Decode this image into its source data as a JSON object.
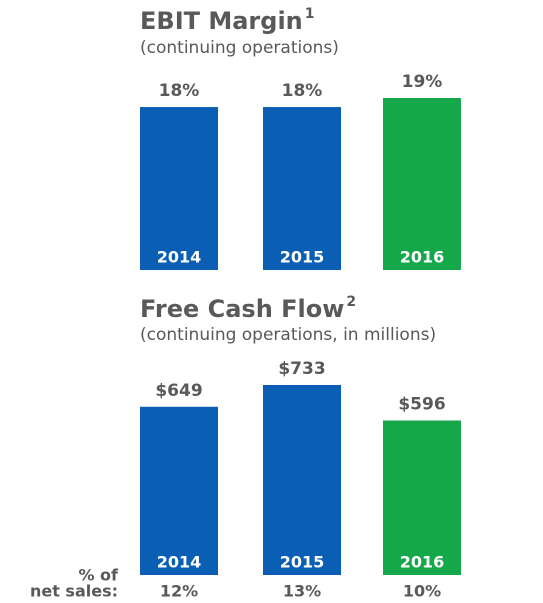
{
  "chart_data": [
    {
      "type": "bar",
      "title": "EBIT Margin",
      "title_note": "1",
      "subtitle": "(continuing operations)",
      "categories": [
        "2014",
        "2015",
        "2016"
      ],
      "values": [
        18,
        18,
        19
      ],
      "value_labels": [
        "18%",
        "18%",
        "19%"
      ],
      "colors": [
        "#0a5fb4",
        "#0a5fb4",
        "#14a84b"
      ]
    },
    {
      "type": "bar",
      "title": "Free Cash Flow",
      "title_note": "2",
      "subtitle": "(continuing operations, in millions)",
      "categories": [
        "2014",
        "2015",
        "2016"
      ],
      "values": [
        649,
        733,
        596
      ],
      "value_labels": [
        "$649",
        "$733",
        "$596"
      ],
      "colors": [
        "#0a5fb4",
        "#0a5fb4",
        "#14a84b"
      ],
      "footer": {
        "label_lines": [
          "% of",
          "net sales:"
        ],
        "values": [
          12,
          13,
          10
        ],
        "value_labels": [
          "12%",
          "13%",
          "10%"
        ]
      }
    }
  ]
}
